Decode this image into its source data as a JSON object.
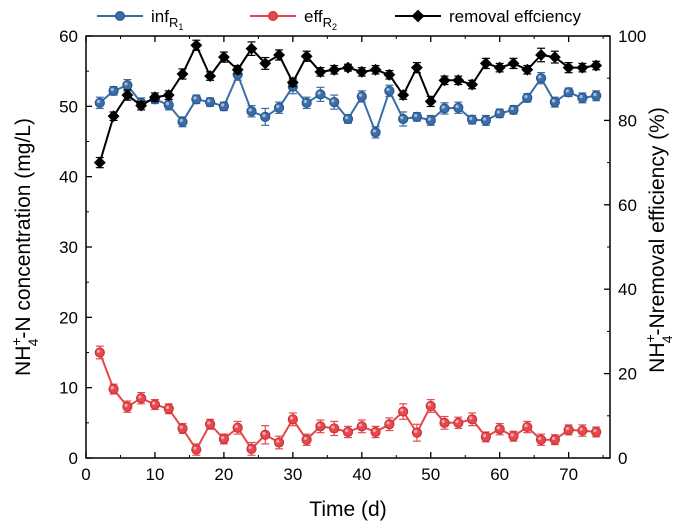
{
  "chart_data": {
    "type": "line",
    "xlabel": "Time (d)",
    "ylabel_left": {
      "main": "NH",
      "sup": "+",
      "sub": "4",
      "rest": "-N concentration (mg/L)"
    },
    "ylabel_right": {
      "main": "NH",
      "sup": "+",
      "sub": "4",
      "rest": "-Nremoval efficiency (%)"
    },
    "xlim": [
      0,
      76
    ],
    "ylim_left": [
      0,
      60
    ],
    "ylim_right": [
      0,
      100
    ],
    "x_ticks": [
      0,
      10,
      20,
      30,
      40,
      50,
      60,
      70
    ],
    "y_ticks_left": [
      0,
      10,
      20,
      30,
      40,
      50,
      60
    ],
    "y_ticks_right": [
      0,
      20,
      40,
      60,
      80,
      100
    ],
    "x": [
      2,
      4,
      6,
      8,
      10,
      12,
      14,
      16,
      18,
      20,
      22,
      24,
      26,
      28,
      30,
      32,
      34,
      36,
      38,
      40,
      42,
      44,
      46,
      48,
      50,
      52,
      54,
      56,
      58,
      60,
      62,
      64,
      66,
      68,
      70,
      72,
      74
    ],
    "legend_position": "top",
    "series": [
      {
        "name": "inf",
        "name_sub": "R",
        "name_subsub": "1",
        "axis": "left",
        "color": "#3a6ea8",
        "marker": "circle",
        "values": [
          50.5,
          52.2,
          53.0,
          50.5,
          51.0,
          50.2,
          47.8,
          51.0,
          50.6,
          50.0,
          54.5,
          49.3,
          48.5,
          49.8,
          52.8,
          50.5,
          51.7,
          50.6,
          48.2,
          51.4,
          46.3,
          52.2,
          48.2,
          48.5,
          48.0,
          49.7,
          49.8,
          48.1,
          48.0,
          49.0,
          49.5,
          51.2,
          54.0,
          50.6,
          52.0,
          51.2,
          51.5
        ],
        "errors": [
          0.8,
          0.6,
          0.8,
          0.7,
          0.6,
          0.7,
          0.7,
          0.6,
          0.6,
          0.6,
          0.8,
          0.8,
          1.2,
          0.8,
          1.0,
          0.8,
          1.0,
          1.0,
          0.6,
          0.8,
          0.8,
          0.8,
          1.0,
          0.6,
          0.7,
          0.8,
          0.8,
          0.6,
          0.7,
          0.6,
          0.6,
          0.6,
          0.8,
          0.7,
          0.6,
          0.7,
          0.7
        ]
      },
      {
        "name": "eff",
        "name_sub": "R",
        "name_subsub": "2",
        "axis": "left",
        "color": "#e8474c",
        "marker": "circle",
        "values": [
          15.0,
          9.8,
          7.3,
          8.5,
          7.6,
          7.0,
          4.2,
          1.2,
          4.8,
          2.7,
          4.3,
          1.3,
          3.3,
          2.2,
          5.5,
          2.6,
          4.5,
          4.2,
          3.7,
          4.5,
          3.7,
          4.8,
          6.6,
          3.6,
          7.4,
          5.0,
          5.0,
          5.5,
          3.0,
          4.1,
          3.1,
          4.4,
          2.6,
          2.6,
          4.0,
          3.9,
          3.7
        ]
      },
      {
        "name": "removal effciency",
        "axis": "right",
        "color": "#000000",
        "marker": "diamond",
        "values": [
          70.0,
          81.0,
          86.0,
          83.5,
          85.5,
          86.0,
          91.0,
          97.8,
          90.5,
          95.0,
          92.0,
          97.0,
          93.5,
          95.5,
          89.0,
          95.2,
          91.5,
          92.0,
          92.5,
          91.5,
          92.0,
          90.8,
          86.0,
          92.5,
          84.5,
          89.5,
          89.5,
          88.5,
          93.5,
          92.5,
          93.5,
          92.0,
          95.5,
          95.0,
          92.5,
          92.5,
          93.0
        ]
      }
    ]
  }
}
